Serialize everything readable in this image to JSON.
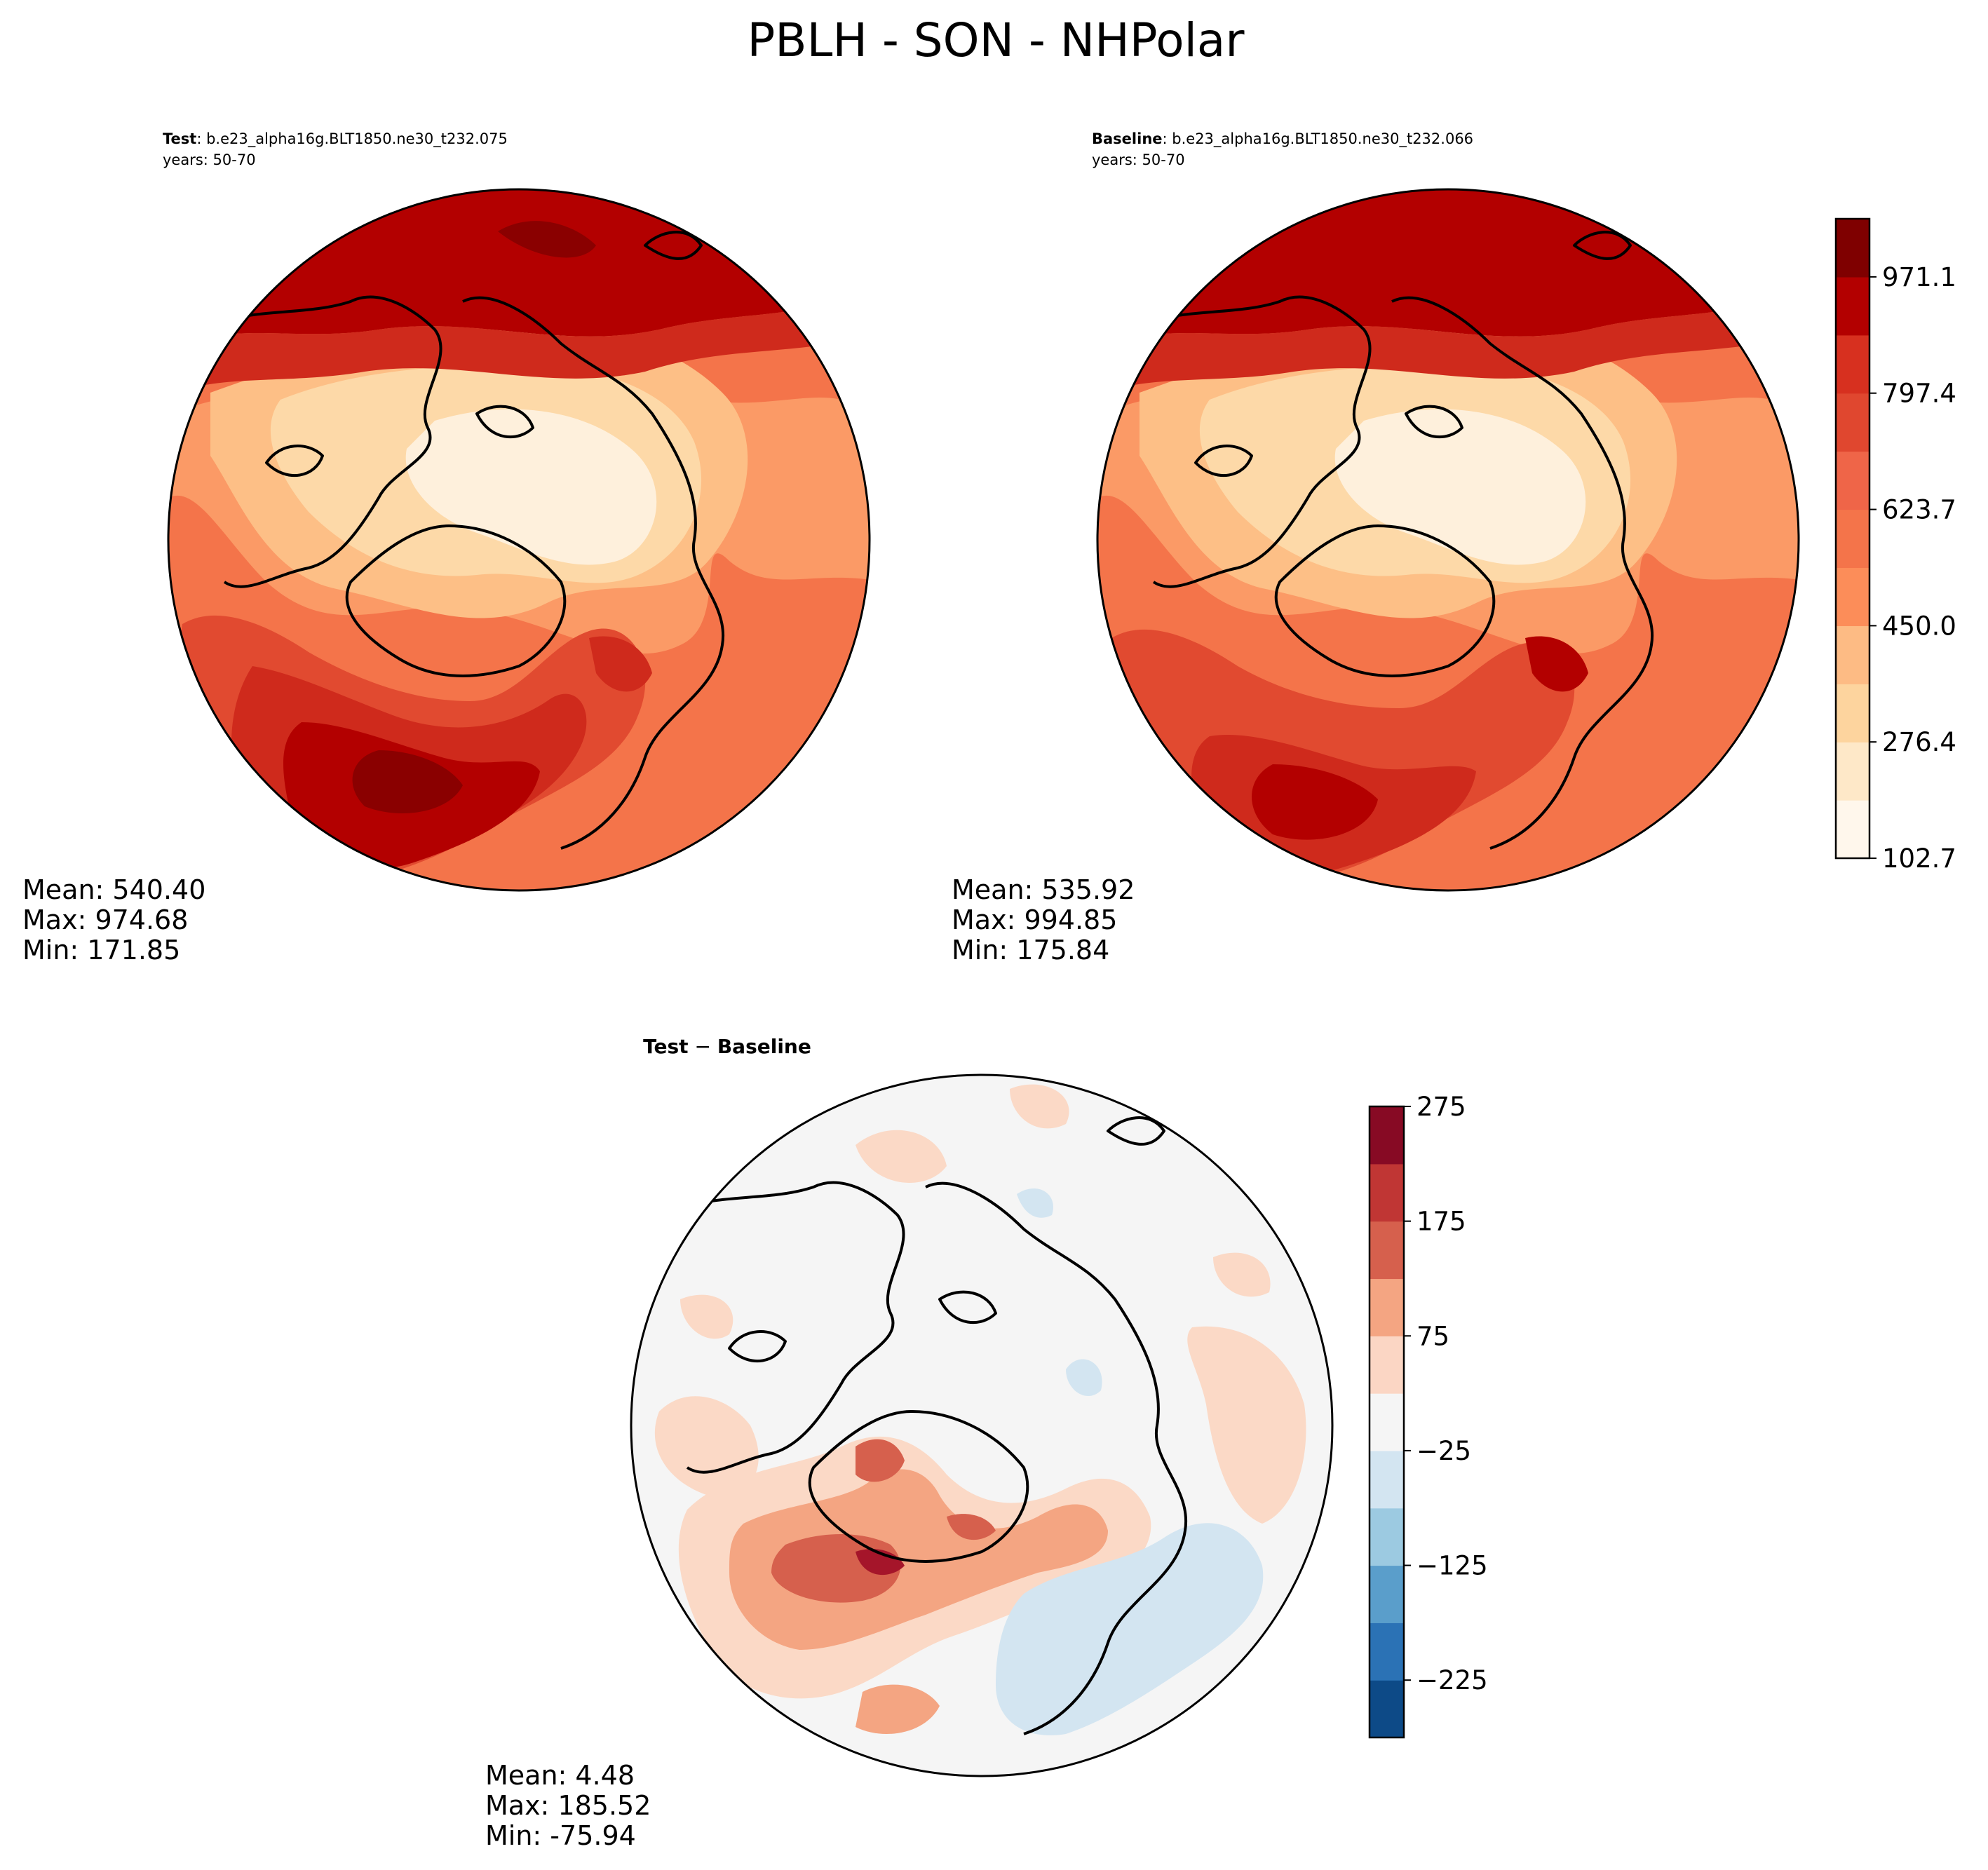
{
  "figure": {
    "title": "PBLH - SON - NHPolar"
  },
  "chart_data": [
    {
      "id": "test",
      "type": "contourf-map",
      "projection": "north-polar-stereographic",
      "case_label": "Test",
      "case_name": ": b.e23_alpha16g.BLT1850.ne30_t232.075",
      "years": "years: 50-70",
      "stats": {
        "mean": "Mean: 540.40",
        "max": "Max: 974.68",
        "min": "Min: 171.85"
      },
      "colormap": "OrRd",
      "levels": [
        102.7,
        189.5,
        276.4,
        363.2,
        450.0,
        536.8,
        623.7,
        710.5,
        797.4,
        884.2,
        971.1,
        1057.9
      ]
    },
    {
      "id": "baseline",
      "type": "contourf-map",
      "projection": "north-polar-stereographic",
      "case_label": "Baseline",
      "case_name": ": b.e23_alpha16g.BLT1850.ne30_t232.066",
      "years": "years: 50-70",
      "stats": {
        "mean": "Mean: 535.92",
        "max": "Max: 994.85",
        "min": "Min: 175.84"
      },
      "colormap": "OrRd",
      "levels": [
        102.7,
        189.5,
        276.4,
        363.2,
        450.0,
        536.8,
        623.7,
        710.5,
        797.4,
        884.2,
        971.1,
        1057.9
      ]
    },
    {
      "id": "diff",
      "type": "contourf-map",
      "projection": "north-polar-stereographic",
      "title_left": "Test",
      "title_op": " − ",
      "title_right": "Baseline",
      "stats": {
        "mean": "Mean:  4.48",
        "max": "Max: 185.52",
        "min": "Min: -75.94"
      },
      "colormap": "RdBu_r",
      "levels": [
        -275,
        -225,
        -175,
        -125,
        -75,
        -25,
        25,
        75,
        125,
        175,
        225,
        275
      ]
    }
  ],
  "colorbars": {
    "main": {
      "ticks": [
        "102.7",
        "276.4",
        "450.0",
        "623.7",
        "797.4",
        "971.1"
      ],
      "tick_values": [
        102.7,
        276.4,
        450.0,
        623.7,
        797.4,
        971.1
      ],
      "range": [
        102.7,
        1057.9
      ],
      "colors": [
        "#fff7ec",
        "#fee8c8",
        "#fdd49e",
        "#fdbb84",
        "#fc8d59",
        "#f4744a",
        "#ef6548",
        "#e0472f",
        "#d7301f",
        "#b30000",
        "#7f0000"
      ]
    },
    "diff": {
      "ticks": [
        "275",
        "175",
        "75",
        "−25",
        "−125",
        "−225"
      ],
      "tick_values": [
        275,
        175,
        75,
        -25,
        -125,
        -225
      ],
      "range": [
        -275,
        275
      ],
      "colors": [
        "#0d4a87",
        "#2b72b5",
        "#5a9ecb",
        "#9ccae1",
        "#d3e5f1",
        "#f5f5f5",
        "#fbd6c4",
        "#f4a582",
        "#d6604d",
        "#c03634",
        "#870a24"
      ]
    }
  },
  "map_colors": {
    "level1": "#fef0dc",
    "level2": "#fdd9a8",
    "level3": "#fdbf86",
    "level4": "#fb9a66",
    "level5": "#f4744a",
    "level6": "#e14a30",
    "level7": "#cf2a1c",
    "level8": "#b30000",
    "level9": "#8a0000",
    "diff_bg": "#f5f5f5",
    "diff_pos1": "#fbd9c6",
    "diff_pos2": "#f4a582",
    "diff_pos3": "#d6604d",
    "diff_pos4": "#a5152a",
    "diff_neg1": "#d3e5f1",
    "coast": "#000000"
  }
}
